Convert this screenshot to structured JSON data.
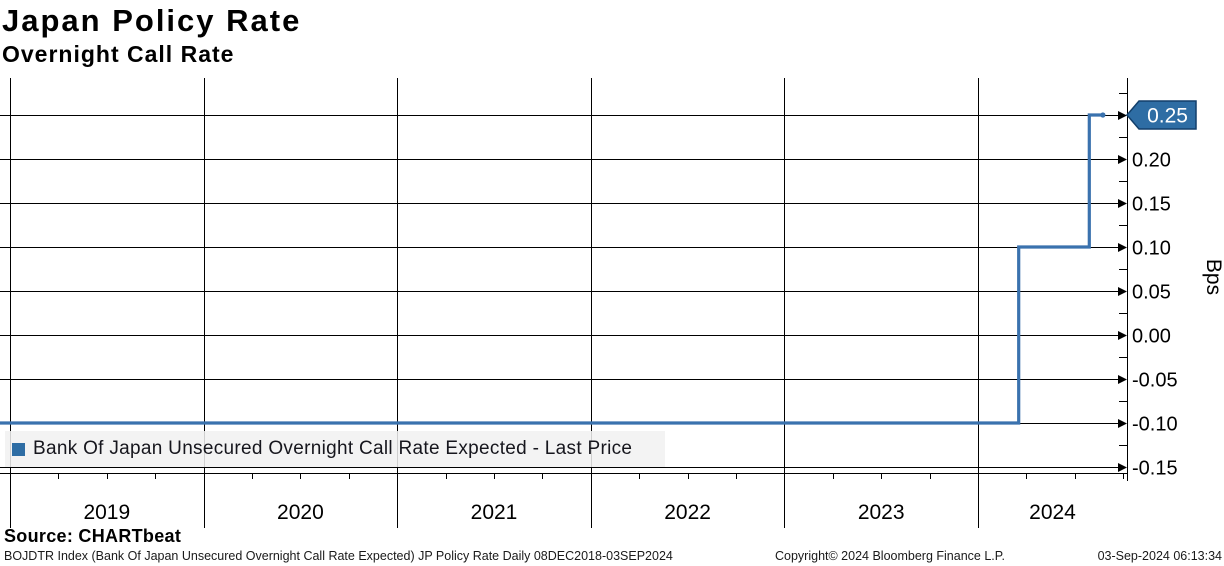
{
  "header": {
    "title": "Japan Policy Rate",
    "subtitle": "Overnight Call Rate"
  },
  "legend": {
    "label": "Bank Of Japan Unsecured Overnight Call Rate Expected - Last Price",
    "swatch_color": "#2e6da4"
  },
  "source": {
    "label": "Source: CHARTbeat"
  },
  "footer": {
    "left": "BOJDTR Index (Bank Of Japan Unsecured Overnight Call Rate Expected) JP Policy Rate  Daily 08DEC2018-03SEP2024",
    "center": "Copyright© 2024 Bloomberg Finance L.P.",
    "right": "03-Sep-2024 06:13:34"
  },
  "chart_data": {
    "type": "line",
    "step": true,
    "title": "Japan Policy Rate",
    "subtitle": "Overnight Call Rate",
    "ylabel": "Bps",
    "grid": true,
    "x_tick_labels": [
      "2019",
      "2020",
      "2021",
      "2022",
      "2023",
      "2024"
    ],
    "y_ticks": [
      0.25,
      0.2,
      0.15,
      0.1,
      0.05,
      0.0,
      -0.05,
      -0.1,
      -0.15
    ],
    "y_tick_labels": [
      "0.25",
      "0.20",
      "0.15",
      "0.10",
      "0.05",
      "0.00",
      "-0.05",
      "-0.10",
      "-0.15"
    ],
    "y_minor_step": 0.025,
    "ylim": [
      -0.157,
      0.292
    ],
    "xlim_decimal_years": [
      2018.94,
      2024.77
    ],
    "last_price_label": "0.25",
    "line_color": "#3a72ae",
    "tag_fill": "#2e6da4",
    "tag_border": "#123f6b",
    "series": [
      {
        "name": "Bank Of Japan Unsecured Overnight Call Rate Expected - Last Price",
        "color": "#3a72ae",
        "points_decimal_year_value": [
          [
            2018.94,
            -0.1
          ],
          [
            2024.21,
            -0.1
          ],
          [
            2024.21,
            0.1
          ],
          [
            2024.575,
            0.1
          ],
          [
            2024.575,
            0.25
          ],
          [
            2024.645,
            0.25
          ]
        ]
      }
    ]
  }
}
